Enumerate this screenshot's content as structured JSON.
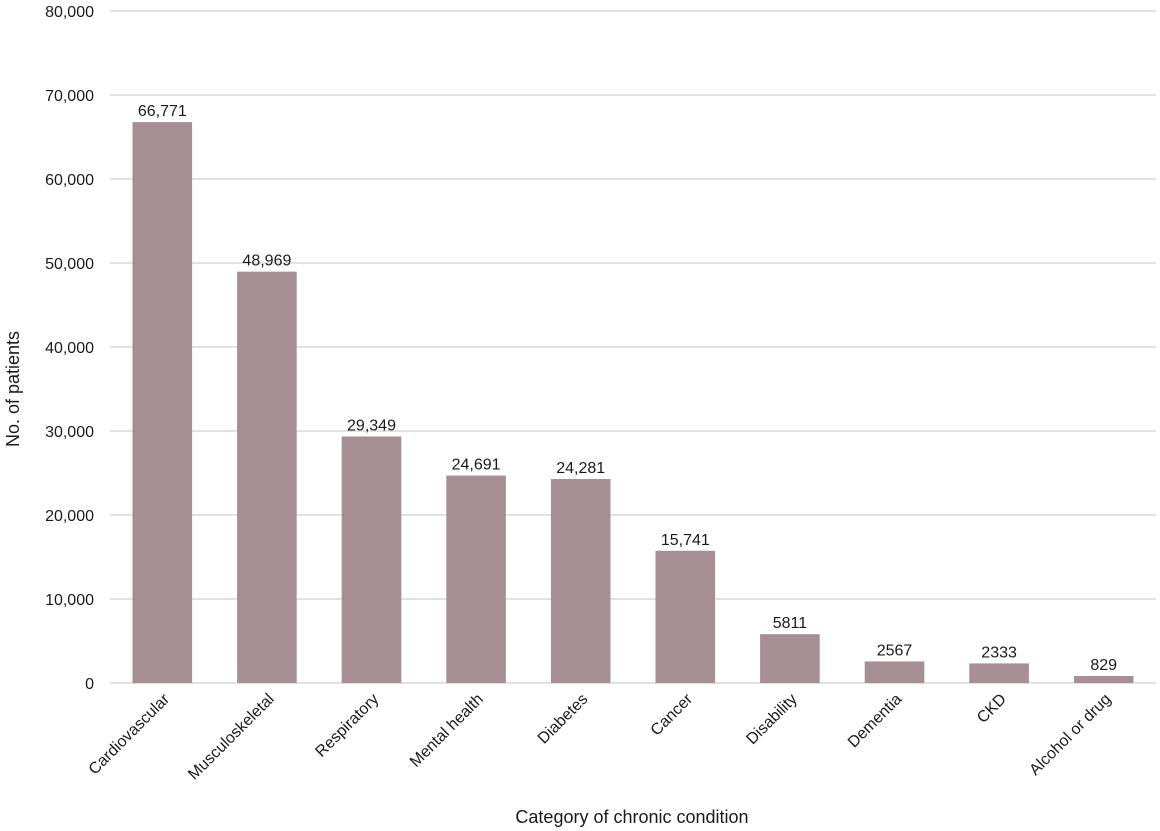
{
  "chart_data": {
    "type": "bar",
    "title": "",
    "xlabel": "Category of chronic condition",
    "ylabel": "No. of patients",
    "categories": [
      "Cardiovascular",
      "Musculoskeletal",
      "Respiratory",
      "Mental health",
      "Diabetes",
      "Cancer",
      "Disability",
      "Dementia",
      "CKD",
      "Alcohol or drug"
    ],
    "values": [
      66771,
      48969,
      29349,
      24691,
      24281,
      15741,
      5811,
      2567,
      2333,
      829
    ],
    "data_labels": [
      "66,771",
      "48,969",
      "29,349",
      "24,691",
      "24,281",
      "15,741",
      "5811",
      "2567",
      "2333",
      "829"
    ],
    "ylim": [
      0,
      80000
    ],
    "yticks": [
      0,
      10000,
      20000,
      30000,
      40000,
      50000,
      60000,
      70000,
      80000
    ],
    "ytick_labels": [
      "0",
      "10,000",
      "20,000",
      "30,000",
      "40,000",
      "50,000",
      "60,000",
      "70,000",
      "80,000"
    ],
    "grid": true,
    "legend": "none",
    "bar_color": "#a58e94"
  }
}
